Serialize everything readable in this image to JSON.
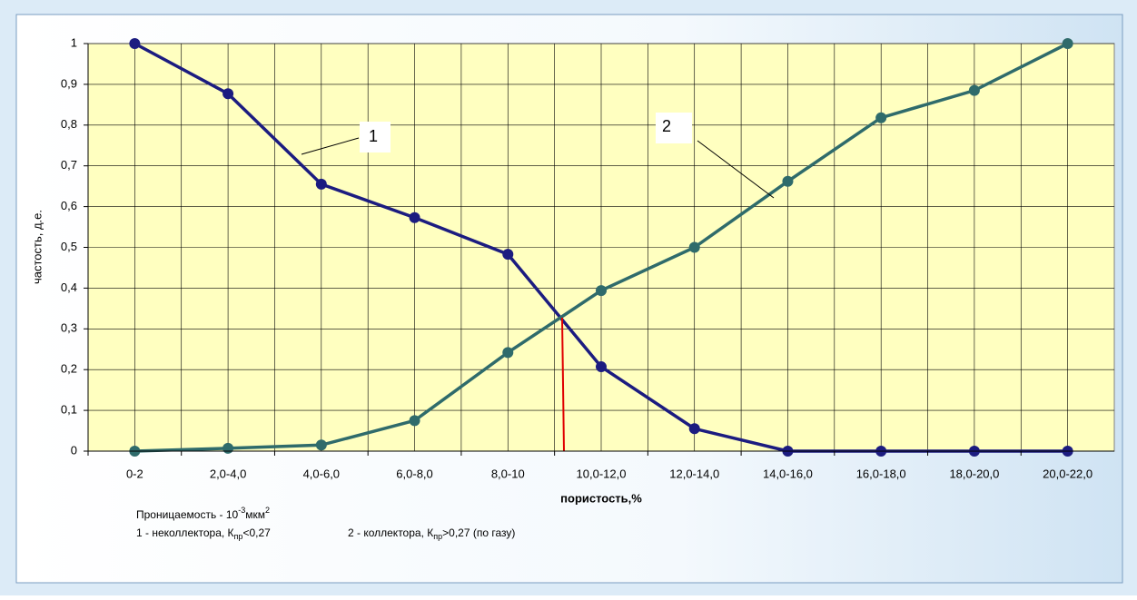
{
  "chart_data": {
    "type": "line",
    "xlabel": "пористость,%",
    "ylabel": "частость, д.е.",
    "categories": [
      "0-2",
      "2,0-4,0",
      "4,0-6,0",
      "6,0-8,0",
      "8,0-10",
      "10,0-12,0",
      "12,0-14,0",
      "14,0-16,0",
      "16,0-18,0",
      "18,0-20,0",
      "20,0-22,0"
    ],
    "series": [
      {
        "name": "1",
        "color": "#1c1c80",
        "values": [
          1,
          0.877,
          0.655,
          0.573,
          0.483,
          0.207,
          0.055,
          0,
          0,
          0,
          0
        ]
      },
      {
        "name": "2",
        "color": "#2f6b6b",
        "values": [
          0,
          0.007,
          0.015,
          0.075,
          0.242,
          0.394,
          0.5,
          0.662,
          0.818,
          0.885,
          1
        ]
      }
    ],
    "ylim": [
      0,
      1
    ],
    "yticks": [
      0,
      {
        "value": 0.1,
        "label": "0,1"
      },
      {
        "value": 0.2,
        "label": "0,2"
      },
      {
        "value": 0.3,
        "label": "0,3"
      },
      {
        "value": 0.4,
        "label": "0,4"
      },
      {
        "value": 0.5,
        "label": "0,5"
      },
      {
        "value": 0.6,
        "label": "0,6"
      },
      {
        "value": 0.7,
        "label": "0,7"
      },
      {
        "value": 0.8,
        "label": "0,8"
      },
      {
        "value": 0.9,
        "label": "0,9"
      },
      1
    ],
    "grid": true,
    "notes": {
      "permeability": {
        "text": "Проницаемость - 10",
        "exp": "-3",
        "unit": "мкм",
        "unit_exp": "2"
      },
      "noncollector": {
        "text": "1 - неколлектора, К",
        "sub": "пр",
        "rest": "<0,27"
      },
      "collector": {
        "text": "2 - коллектора, К",
        "sub": "пр",
        "rest": ">0,27 (по газу)"
      }
    }
  }
}
